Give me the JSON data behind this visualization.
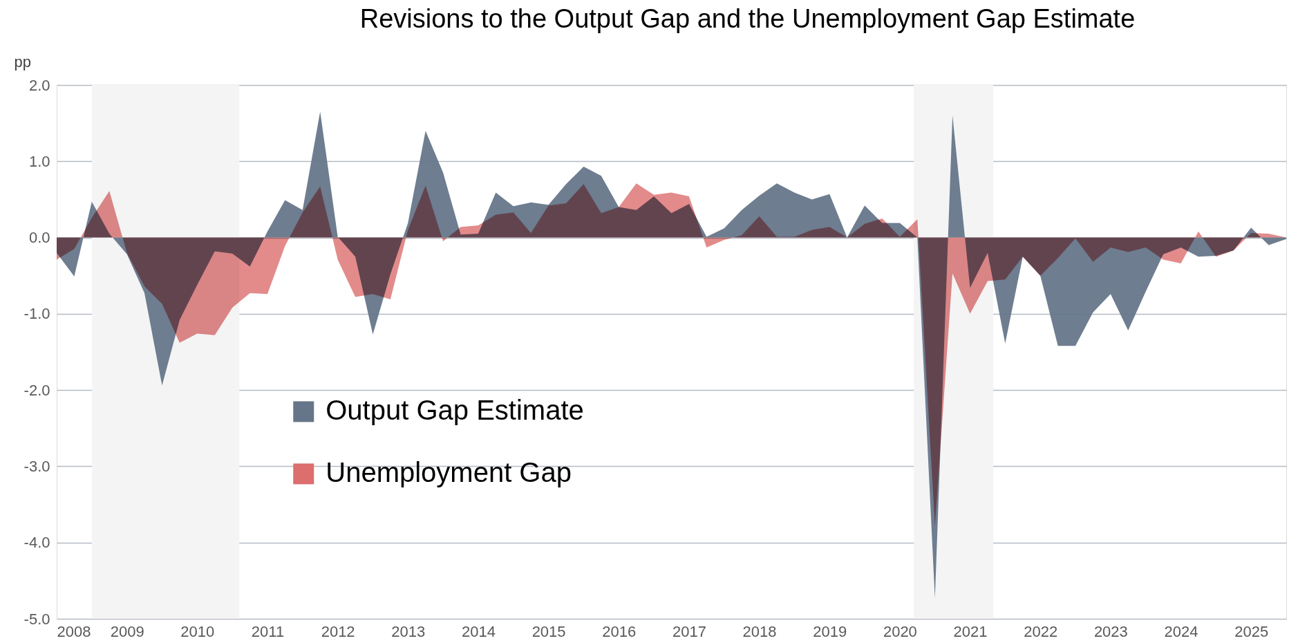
{
  "chart_data": {
    "type": "area",
    "title": "Revisions to the Output Gap and the Unemployment Gap Estimate",
    "ylabel": "pp",
    "x": [
      2008,
      2008.25,
      2008.5,
      2008.75,
      2009,
      2009.25,
      2009.5,
      2009.75,
      2010,
      2010.25,
      2010.5,
      2010.75,
      2011,
      2011.25,
      2011.5,
      2011.75,
      2012,
      2012.25,
      2012.5,
      2012.75,
      2013,
      2013.25,
      2013.5,
      2013.75,
      2014,
      2014.25,
      2014.5,
      2014.75,
      2015,
      2015.25,
      2015.5,
      2015.75,
      2016,
      2016.25,
      2016.5,
      2016.75,
      2017,
      2017.25,
      2017.5,
      2017.75,
      2018,
      2018.25,
      2018.5,
      2018.75,
      2019,
      2019.25,
      2019.5,
      2019.75,
      2020,
      2020.25,
      2020.5,
      2020.75,
      2021,
      2021.25,
      2021.5,
      2021.75,
      2022,
      2022.25,
      2022.5,
      2022.75,
      2023,
      2023.25,
      2023.5,
      2023.75,
      2024,
      2024.25,
      2024.5,
      2024.75,
      2025,
      2025.25,
      2025.5
    ],
    "series": [
      {
        "name": "Output Gap Estimate",
        "color": "#66768a",
        "values": [
          -0.2,
          -0.51,
          0.47,
          0.05,
          -0.22,
          -0.73,
          -1.94,
          -1.08,
          -0.62,
          -0.18,
          -0.21,
          -0.38,
          0.08,
          0.49,
          0.36,
          1.65,
          0.01,
          -0.25,
          -1.27,
          -0.48,
          0.19,
          1.4,
          0.85,
          0.04,
          0.05,
          0.59,
          0.41,
          0.46,
          0.43,
          0.7,
          0.93,
          0.81,
          0.4,
          0.36,
          0.54,
          0.32,
          0.44,
          0.01,
          0.12,
          0.36,
          0.55,
          0.71,
          0.59,
          0.5,
          0.57,
          0.0,
          0.42,
          0.19,
          0.19,
          0.0,
          -4.73,
          1.6,
          -0.66,
          -0.2,
          -1.39,
          -0.25,
          -0.5,
          -1.42,
          -1.42,
          -0.98,
          -0.74,
          -1.22,
          -0.71,
          -0.22,
          -0.13,
          -0.25,
          -0.24,
          -0.17,
          0.13,
          -0.1,
          -0.02
        ]
      },
      {
        "name": "Unemployment Gap",
        "color": "#dc6e6e",
        "values": [
          -0.29,
          -0.15,
          0.26,
          0.61,
          -0.2,
          -0.64,
          -0.87,
          -1.38,
          -1.26,
          -1.28,
          -0.92,
          -0.73,
          -0.74,
          -0.11,
          0.33,
          0.67,
          -0.29,
          -0.78,
          -0.74,
          -0.81,
          0.1,
          0.68,
          -0.05,
          0.14,
          0.16,
          0.3,
          0.33,
          0.06,
          0.42,
          0.45,
          0.7,
          0.32,
          0.4,
          0.71,
          0.56,
          0.59,
          0.54,
          -0.13,
          -0.03,
          0.03,
          0.28,
          0.01,
          0.01,
          0.1,
          0.14,
          0.0,
          0.18,
          0.25,
          0.01,
          0.24,
          -3.78,
          -0.47,
          -1.0,
          -0.57,
          -0.55,
          -0.25,
          -0.5,
          -0.27,
          -0.01,
          -0.32,
          -0.13,
          -0.19,
          -0.13,
          -0.29,
          -0.34,
          0.08,
          -0.25,
          -0.17,
          0.06,
          0.05,
          0.0
        ]
      }
    ],
    "xlim": [
      2008,
      2025.5
    ],
    "xticks": [
      2008,
      2009,
      2010,
      2011,
      2012,
      2013,
      2014,
      2015,
      2016,
      2017,
      2018,
      2019,
      2020,
      2021,
      2022,
      2023,
      2024,
      2025
    ],
    "ylim": [
      -5,
      2
    ],
    "yticks": [
      {
        "value": -5,
        "label": "-5.0"
      },
      {
        "value": -4,
        "label": "-4.0"
      },
      {
        "value": -3,
        "label": "-3.0"
      },
      {
        "value": -2,
        "label": "-2.0"
      },
      {
        "value": -1,
        "label": "-1.0"
      },
      {
        "value": 0,
        "label": "0.0"
      },
      {
        "value": 1,
        "label": "1.0"
      },
      {
        "value": 2,
        "label": "2.0"
      }
    ],
    "bands": [
      {
        "axis": "x",
        "from": 2008.5,
        "to": 2010.6,
        "color": "#f4f4f4"
      },
      {
        "axis": "x",
        "from": 2020.2,
        "to": 2021.33,
        "color": "#f4f4f4"
      }
    ],
    "grid": "y",
    "legend": "bottom left"
  }
}
